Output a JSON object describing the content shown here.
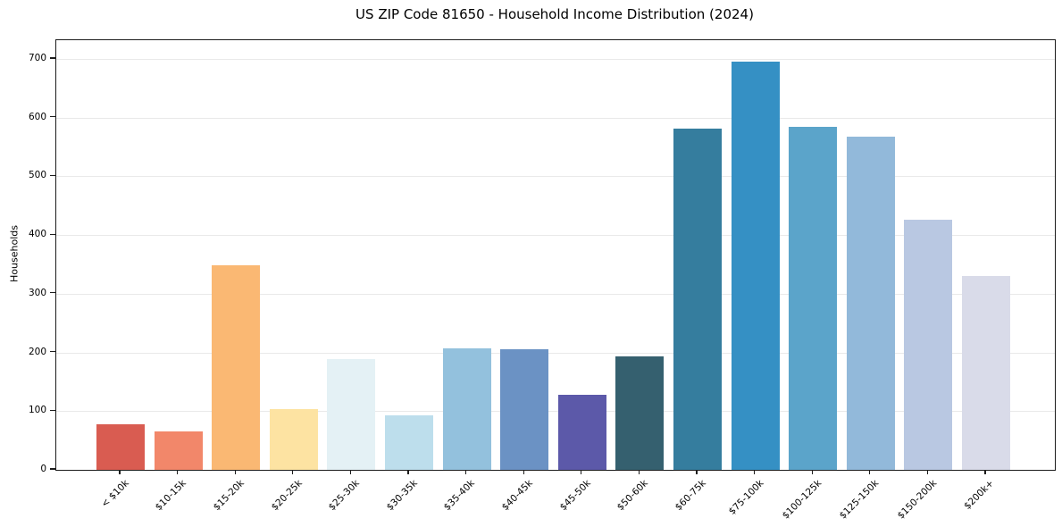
{
  "chart_data": {
    "type": "bar",
    "title": "US ZIP Code 81650 - Household Income Distribution (2024)",
    "xlabel": "",
    "ylabel": "Households",
    "categories": [
      "< $10k",
      "$10-15k",
      "$15-20k",
      "$20-25k",
      "$25-30k",
      "$30-35k",
      "$35-40k",
      "$40-45k",
      "$45-50k",
      "$50-60k",
      "$60-75k",
      "$75-100k",
      "$100-125k",
      "$125-150k",
      "$150-200k",
      "$200k+"
    ],
    "values": [
      77,
      65,
      349,
      103,
      188,
      93,
      207,
      205,
      128,
      194,
      581,
      695,
      585,
      567,
      426,
      330
    ],
    "bar_colors": [
      "#d95c51",
      "#f2876a",
      "#fab873",
      "#fde3a2",
      "#e4f1f5",
      "#bddeec",
      "#93c1dd",
      "#6b92c4",
      "#5c59a9",
      "#35606f",
      "#357d9e",
      "#3590c4",
      "#5ba4ca",
      "#92b9da",
      "#b9c8e2",
      "#d9dbe9"
    ],
    "yticks": [
      0,
      100,
      200,
      300,
      400,
      500,
      600,
      700
    ],
    "ylim": [
      0,
      732
    ],
    "grid": "horizontal",
    "gridline_color": "#e9e9e9",
    "axis_color": "#1c1c1c",
    "background": "#ffffff",
    "legend": "none",
    "x_tick_rotation_deg": 45
  }
}
